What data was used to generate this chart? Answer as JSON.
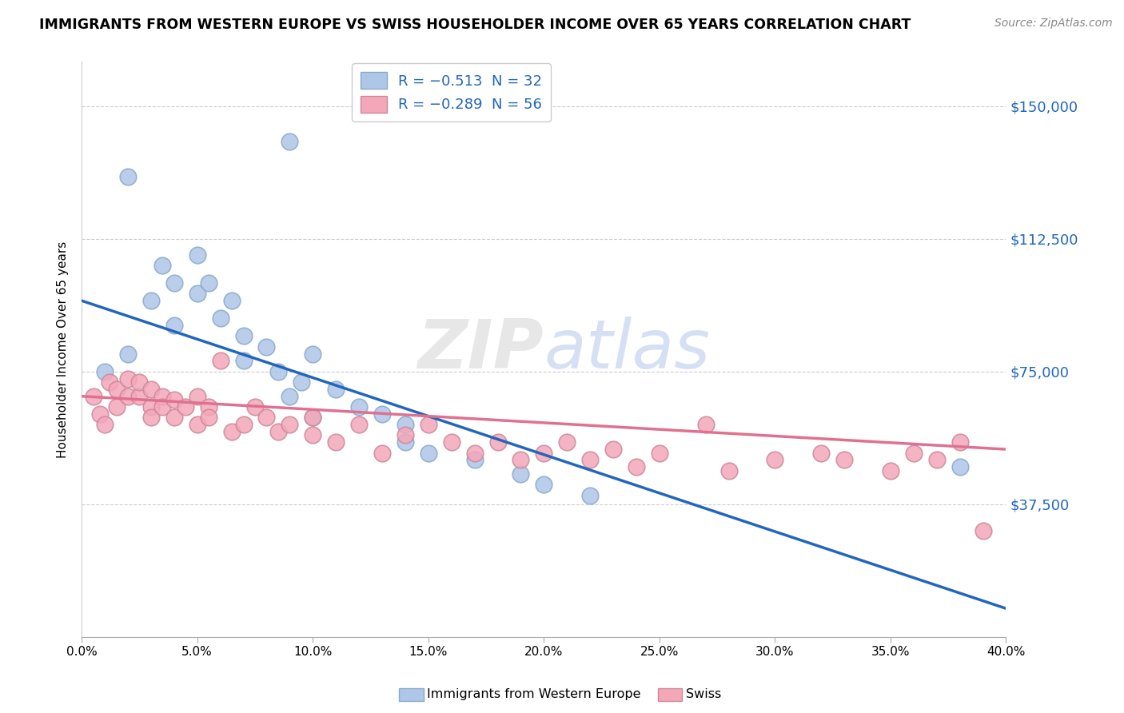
{
  "title": "IMMIGRANTS FROM WESTERN EUROPE VS SWISS HOUSEHOLDER INCOME OVER 65 YEARS CORRELATION CHART",
  "source": "Source: ZipAtlas.com",
  "ylabel": "Householder Income Over 65 years",
  "yticks": [
    0,
    37500,
    75000,
    112500,
    150000
  ],
  "ytick_labels": [
    "",
    "$37,500",
    "$75,000",
    "$112,500",
    "$150,000"
  ],
  "watermark": "ZIPatlas",
  "legend_blue_color": "#aec6e8",
  "legend_pink_color": "#f4a7b9",
  "blue_line_color": "#2266bb",
  "pink_line_color": "#e07090",
  "blue_scatter_color": "#aec6e8",
  "pink_scatter_color": "#f4a7b9",
  "background_color": "#ffffff",
  "grid_color": "#cccccc",
  "blue_scatter_x": [
    0.02,
    0.09,
    0.01,
    0.02,
    0.03,
    0.035,
    0.04,
    0.04,
    0.05,
    0.05,
    0.055,
    0.06,
    0.065,
    0.07,
    0.07,
    0.08,
    0.085,
    0.09,
    0.095,
    0.1,
    0.1,
    0.11,
    0.12,
    0.13,
    0.14,
    0.14,
    0.15,
    0.17,
    0.19,
    0.2,
    0.22,
    0.38
  ],
  "blue_scatter_y": [
    130000,
    140000,
    75000,
    80000,
    95000,
    105000,
    88000,
    100000,
    97000,
    108000,
    100000,
    90000,
    95000,
    85000,
    78000,
    82000,
    75000,
    68000,
    72000,
    80000,
    62000,
    70000,
    65000,
    63000,
    60000,
    55000,
    52000,
    50000,
    46000,
    43000,
    40000,
    48000
  ],
  "pink_scatter_x": [
    0.005,
    0.008,
    0.01,
    0.012,
    0.015,
    0.015,
    0.02,
    0.02,
    0.025,
    0.025,
    0.03,
    0.03,
    0.03,
    0.035,
    0.035,
    0.04,
    0.04,
    0.045,
    0.05,
    0.05,
    0.055,
    0.055,
    0.06,
    0.065,
    0.07,
    0.075,
    0.08,
    0.085,
    0.09,
    0.1,
    0.1,
    0.11,
    0.12,
    0.13,
    0.14,
    0.15,
    0.16,
    0.17,
    0.18,
    0.19,
    0.2,
    0.21,
    0.22,
    0.23,
    0.24,
    0.25,
    0.27,
    0.28,
    0.3,
    0.32,
    0.33,
    0.35,
    0.36,
    0.37,
    0.38,
    0.39
  ],
  "pink_scatter_y": [
    68000,
    63000,
    60000,
    72000,
    65000,
    70000,
    68000,
    73000,
    68000,
    72000,
    70000,
    65000,
    62000,
    68000,
    65000,
    67000,
    62000,
    65000,
    68000,
    60000,
    65000,
    62000,
    78000,
    58000,
    60000,
    65000,
    62000,
    58000,
    60000,
    62000,
    57000,
    55000,
    60000,
    52000,
    57000,
    60000,
    55000,
    52000,
    55000,
    50000,
    52000,
    55000,
    50000,
    53000,
    48000,
    52000,
    60000,
    47000,
    50000,
    52000,
    50000,
    47000,
    52000,
    50000,
    55000,
    30000
  ],
  "blue_R": -0.513,
  "blue_N": 32,
  "pink_R": -0.289,
  "pink_N": 56,
  "xlim": [
    0,
    0.4
  ],
  "ylim": [
    0,
    162500
  ],
  "blue_line_x0": 0.0,
  "blue_line_y0": 95000,
  "blue_line_x1": 0.4,
  "blue_line_y1": 8000,
  "pink_line_x0": 0.0,
  "pink_line_y0": 68000,
  "pink_line_x1": 0.4,
  "pink_line_y1": 53000
}
